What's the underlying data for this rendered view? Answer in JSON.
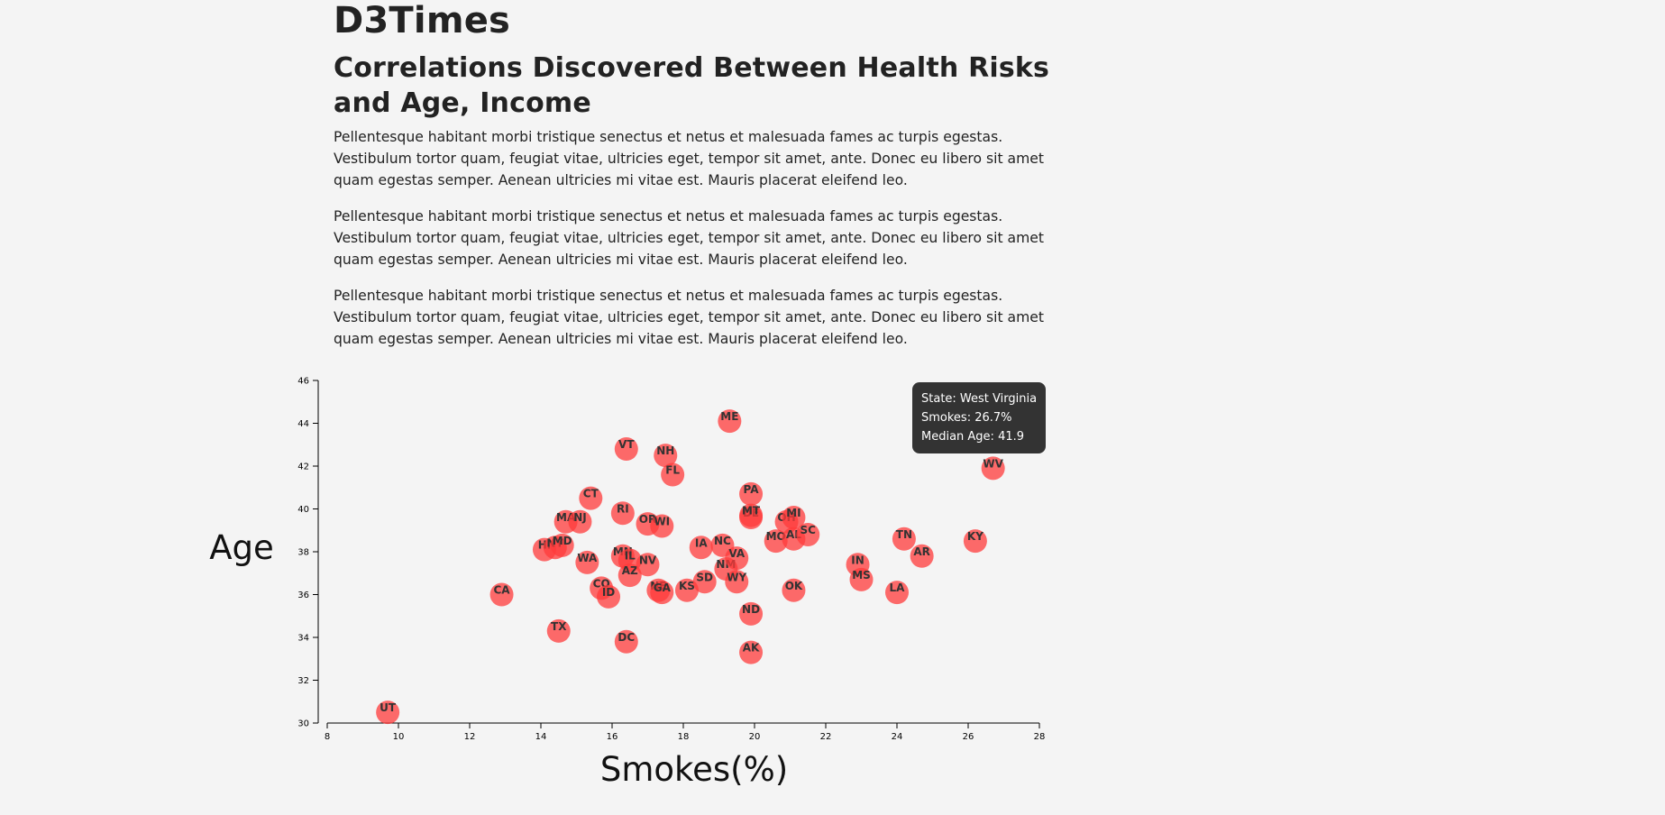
{
  "page": {
    "site_title": "D3Times",
    "headline": "Correlations Discovered Between Health Risks and Age, Income",
    "paragraphs": [
      "Pellentesque habitant morbi tristique senectus et netus et malesuada fames ac turpis egestas. Vestibulum tortor quam, feugiat vitae, ultricies eget, tempor sit amet, ante. Donec eu libero sit amet quam egestas semper. Aenean ultricies mi vitae est. Mauris placerat eleifend leo.",
      "Pellentesque habitant morbi tristique senectus et netus et malesuada fames ac turpis egestas. Vestibulum tortor quam, feugiat vitae, ultricies eget, tempor sit amet, ante. Donec eu libero sit amet quam egestas semper. Aenean ultricies mi vitae est. Mauris placerat eleifend leo.",
      "Pellentesque habitant morbi tristique senectus et netus et malesuada fames ac turpis egestas. Vestibulum tortor quam, feugiat vitae, ultricies eget, tempor sit amet, ante. Donec eu libero sit amet quam egestas semper. Aenean ultricies mi vitae est. Mauris placerat eleifend leo."
    ]
  },
  "tooltip": {
    "state_line": "State: West Virginia",
    "smokes_line": "Smokes: 26.7%",
    "age_line": "Median Age: 41.9"
  },
  "colors": {
    "point_fill": "#ff3b3b",
    "point_label": "#333333",
    "tooltip_bg": "#333333"
  },
  "chart_data": {
    "type": "scatter",
    "title": "",
    "xlabel": "Smokes(%)",
    "ylabel": "Age",
    "xlim": [
      8,
      28
    ],
    "ylim": [
      30,
      46
    ],
    "xticks": [
      8,
      10,
      12,
      14,
      16,
      18,
      20,
      22,
      24,
      26,
      28
    ],
    "yticks": [
      30,
      32,
      34,
      36,
      38,
      40,
      42,
      44,
      46
    ],
    "grid": false,
    "points": [
      {
        "label": "UT",
        "x": 9.7,
        "y": 30.5
      },
      {
        "label": "CA",
        "x": 12.9,
        "y": 36.0
      },
      {
        "label": "TX",
        "x": 14.5,
        "y": 34.3
      },
      {
        "label": "HI",
        "x": 14.1,
        "y": 38.1
      },
      {
        "label": "NY",
        "x": 14.4,
        "y": 38.2
      },
      {
        "label": "MD",
        "x": 14.6,
        "y": 38.3
      },
      {
        "label": "MA",
        "x": 14.7,
        "y": 39.4
      },
      {
        "label": "NJ",
        "x": 15.1,
        "y": 39.4
      },
      {
        "label": "WA",
        "x": 15.3,
        "y": 37.5
      },
      {
        "label": "CT",
        "x": 15.4,
        "y": 40.5
      },
      {
        "label": "CO",
        "x": 15.7,
        "y": 36.3
      },
      {
        "label": "ID",
        "x": 15.9,
        "y": 35.9
      },
      {
        "label": "DC",
        "x": 16.4,
        "y": 33.8
      },
      {
        "label": "VT",
        "x": 16.4,
        "y": 42.8
      },
      {
        "label": "RI",
        "x": 16.3,
        "y": 39.8
      },
      {
        "label": "MN",
        "x": 16.3,
        "y": 37.8
      },
      {
        "label": "IL",
        "x": 16.5,
        "y": 37.6
      },
      {
        "label": "AZ",
        "x": 16.5,
        "y": 36.9
      },
      {
        "label": "NV",
        "x": 17.0,
        "y": 37.4
      },
      {
        "label": "OR",
        "x": 17.0,
        "y": 39.3
      },
      {
        "label": "WI",
        "x": 17.4,
        "y": 39.2
      },
      {
        "label": "NH",
        "x": 17.5,
        "y": 42.5
      },
      {
        "label": "FL",
        "x": 17.7,
        "y": 41.6
      },
      {
        "label": "NE",
        "x": 17.3,
        "y": 36.2
      },
      {
        "label": "GA",
        "x": 17.4,
        "y": 36.1
      },
      {
        "label": "KS",
        "x": 18.1,
        "y": 36.2
      },
      {
        "label": "IA",
        "x": 18.5,
        "y": 38.2
      },
      {
        "label": "SD",
        "x": 18.6,
        "y": 36.6
      },
      {
        "label": "NC",
        "x": 19.1,
        "y": 38.3
      },
      {
        "label": "NM",
        "x": 19.2,
        "y": 37.2
      },
      {
        "label": "ME",
        "x": 19.3,
        "y": 44.1
      },
      {
        "label": "VA",
        "x": 19.5,
        "y": 37.7
      },
      {
        "label": "WY",
        "x": 19.5,
        "y": 36.6
      },
      {
        "label": "PA",
        "x": 19.9,
        "y": 40.7
      },
      {
        "label": "DE",
        "x": 19.9,
        "y": 39.6
      },
      {
        "label": "MT",
        "x": 19.9,
        "y": 39.7
      },
      {
        "label": "ND",
        "x": 19.9,
        "y": 35.1
      },
      {
        "label": "AK",
        "x": 19.9,
        "y": 33.3
      },
      {
        "label": "MO",
        "x": 20.6,
        "y": 38.5
      },
      {
        "label": "OH",
        "x": 20.9,
        "y": 39.4
      },
      {
        "label": "MI",
        "x": 21.1,
        "y": 39.6
      },
      {
        "label": "AL",
        "x": 21.1,
        "y": 38.6
      },
      {
        "label": "OK",
        "x": 21.1,
        "y": 36.2
      },
      {
        "label": "SC",
        "x": 21.5,
        "y": 38.8
      },
      {
        "label": "IN",
        "x": 22.9,
        "y": 37.4
      },
      {
        "label": "MS",
        "x": 23.0,
        "y": 36.7
      },
      {
        "label": "LA",
        "x": 24.0,
        "y": 36.1
      },
      {
        "label": "TN",
        "x": 24.2,
        "y": 38.6
      },
      {
        "label": "AR",
        "x": 24.7,
        "y": 37.8
      },
      {
        "label": "KY",
        "x": 26.2,
        "y": 38.5
      },
      {
        "label": "WV",
        "x": 26.7,
        "y": 41.9
      }
    ]
  }
}
